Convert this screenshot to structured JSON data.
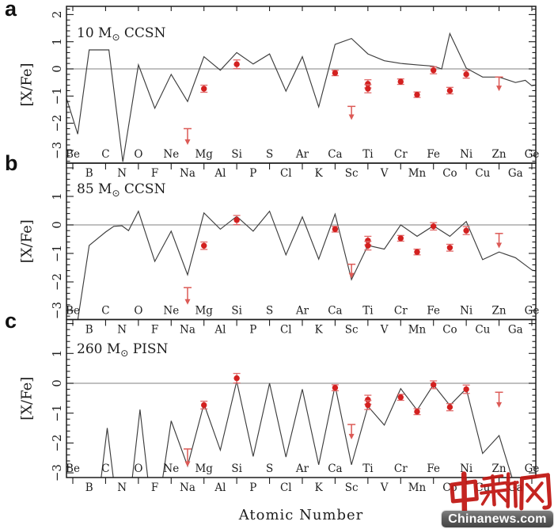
{
  "watermark": {
    "cjk_text": "中新网",
    "site_text": "Chinanews.com",
    "cjk_color": "#c01511",
    "banner_text_color": "#ffffff"
  },
  "chart_data": {
    "type": "line",
    "xlabel": "Atomic Number",
    "ylabel": "[X/Fe]",
    "x_range_atomic_number": [
      4,
      32
    ],
    "ylim": [
      -3,
      2
    ],
    "grid": false,
    "colors": {
      "model_line": "#3d3d3d",
      "zero_line": "#9b9b9b",
      "axis": "#1c1c1c",
      "data_red": "#d32120",
      "error_red": "#e06a6a",
      "arrow_red": "#dc5a56"
    },
    "element_labels_upper": [
      {
        "symbol": "Be",
        "z": 4
      },
      {
        "symbol": "C",
        "z": 6
      },
      {
        "symbol": "O",
        "z": 8
      },
      {
        "symbol": "Ne",
        "z": 10
      },
      {
        "symbol": "Mg",
        "z": 12
      },
      {
        "symbol": "Si",
        "z": 14
      },
      {
        "symbol": "S",
        "z": 16
      },
      {
        "symbol": "Ar",
        "z": 18
      },
      {
        "symbol": "Ca",
        "z": 20
      },
      {
        "symbol": "Ti",
        "z": 22
      },
      {
        "symbol": "Cr",
        "z": 24
      },
      {
        "symbol": "Fe",
        "z": 26
      },
      {
        "symbol": "Ni",
        "z": 28
      },
      {
        "symbol": "Zn",
        "z": 30
      },
      {
        "symbol": "Ge",
        "z": 32
      }
    ],
    "element_labels_lower": [
      {
        "symbol": "B",
        "z": 5
      },
      {
        "symbol": "N",
        "z": 7
      },
      {
        "symbol": "F",
        "z": 9
      },
      {
        "symbol": "Na",
        "z": 11
      },
      {
        "symbol": "Al",
        "z": 13
      },
      {
        "symbol": "P",
        "z": 15
      },
      {
        "symbol": "Cl",
        "z": 17
      },
      {
        "symbol": "K",
        "z": 19
      },
      {
        "symbol": "Sc",
        "z": 21
      },
      {
        "symbol": "V",
        "z": 23
      },
      {
        "symbol": "Mn",
        "z": 25
      },
      {
        "symbol": "Co",
        "z": 27
      },
      {
        "symbol": "Cu",
        "z": 29
      },
      {
        "symbol": "Ga",
        "z": 31
      }
    ],
    "panels": [
      {
        "id": "a",
        "label": "a",
        "title": "10 M⊙ CCSN",
        "yticks": [
          2,
          1,
          0,
          -1,
          -2,
          -3
        ],
        "model_line_segments": [
          [
            [
              3.6,
              -1.05
            ],
            [
              4.3,
              -2.4
            ],
            [
              5.0,
              0.7
            ],
            [
              6.2,
              0.7
            ],
            [
              7.05,
              -3.42
            ],
            [
              8,
              0.15
            ],
            [
              9,
              -1.45
            ],
            [
              10,
              -0.2
            ],
            [
              11,
              -1.2
            ],
            [
              12,
              0.45
            ],
            [
              13,
              -0.05
            ],
            [
              14,
              0.6
            ],
            [
              15,
              0.18
            ],
            [
              16,
              0.55
            ],
            [
              17,
              -0.82
            ],
            [
              18,
              0.45
            ],
            [
              19,
              -1.4
            ],
            [
              20,
              0.9
            ],
            [
              21,
              1.12
            ],
            [
              22,
              0.55
            ],
            [
              23,
              0.3
            ],
            [
              24,
              0.2
            ],
            [
              25,
              0.15
            ],
            [
              26,
              0.1
            ],
            [
              26.5,
              0.0
            ],
            [
              27,
              1.3
            ],
            [
              28,
              0.03
            ],
            [
              29,
              -0.3
            ],
            [
              30,
              -0.3
            ],
            [
              31,
              -0.5
            ],
            [
              31.6,
              -0.42
            ],
            [
              32,
              -0.62
            ],
            [
              32.3,
              -0.58
            ]
          ]
        ]
      },
      {
        "id": "b",
        "label": "b",
        "title": "85 M⊙ CCSN",
        "yticks": [
          1,
          0,
          -1,
          -2,
          -3
        ],
        "model_line_segments": [
          [
            [
              4.3,
              -3.35
            ],
            [
              5,
              -0.72
            ],
            [
              6,
              -0.25
            ],
            [
              6.5,
              -0.05
            ],
            [
              7,
              -0.03
            ],
            [
              7.4,
              -0.2
            ],
            [
              8,
              0.48
            ],
            [
              9,
              -1.28
            ],
            [
              10,
              -0.22
            ],
            [
              11,
              -1.75
            ],
            [
              12,
              0.42
            ],
            [
              13,
              -0.15
            ],
            [
              14,
              0.3
            ],
            [
              15,
              -0.22
            ],
            [
              16,
              0.48
            ],
            [
              17,
              -1.05
            ],
            [
              18,
              0.28
            ],
            [
              19,
              -1.2
            ],
            [
              20,
              0.38
            ],
            [
              21,
              -1.92
            ],
            [
              22,
              -0.72
            ],
            [
              23,
              -0.85
            ],
            [
              24,
              0.0
            ],
            [
              25,
              -0.4
            ],
            [
              26,
              -0.03
            ],
            [
              27,
              -0.4
            ],
            [
              28,
              0.12
            ],
            [
              29,
              -1.22
            ],
            [
              30,
              -0.95
            ],
            [
              31,
              -1.15
            ],
            [
              32,
              -1.58
            ],
            [
              32.3,
              -1.62
            ]
          ]
        ]
      },
      {
        "id": "c",
        "label": "c",
        "title": "260 M⊙ PISN",
        "yticks": [
          1,
          0,
          -1,
          -2,
          -3
        ],
        "model_line_segments": [
          [
            [
              5.7,
              -3.3
            ],
            [
              6.1,
              -1.5
            ],
            [
              6.5,
              -3.3
            ]
          ],
          [
            [
              7.6,
              -3.3
            ],
            [
              8.1,
              -0.88
            ],
            [
              8.6,
              -3.3
            ]
          ],
          [
            [
              9.45,
              -3.3
            ],
            [
              10,
              -1.26
            ],
            [
              11,
              -2.77
            ],
            [
              12,
              -0.69
            ],
            [
              13,
              -2.24
            ],
            [
              14,
              0.07
            ],
            [
              15,
              -2.45
            ],
            [
              16,
              0.0
            ],
            [
              17,
              -2.47
            ],
            [
              18,
              -0.2
            ],
            [
              19,
              -2.73
            ],
            [
              20,
              -0.08
            ],
            [
              21,
              -2.73
            ],
            [
              22,
              -0.77
            ],
            [
              23,
              -1.4
            ],
            [
              24,
              -0.18
            ],
            [
              25,
              -0.9
            ],
            [
              26,
              -0.05
            ],
            [
              27,
              -0.74
            ],
            [
              28,
              -0.18
            ],
            [
              29,
              -2.35
            ],
            [
              30,
              -1.75
            ],
            [
              30.9,
              -3.35
            ]
          ]
        ]
      }
    ],
    "observed_points": [
      {
        "el": "Na",
        "z": 11,
        "kind": "upper_limit",
        "cap": -2.2,
        "tip": -2.8
      },
      {
        "el": "Mg",
        "z": 12,
        "kind": "point",
        "v": -0.73,
        "err": 0.13
      },
      {
        "el": "Si",
        "z": 14,
        "kind": "point",
        "v": 0.17,
        "err": 0.16
      },
      {
        "el": "Ca",
        "z": 20,
        "kind": "point",
        "v": -0.15,
        "err": 0.1
      },
      {
        "el": "Sc",
        "z": 21,
        "kind": "upper_limit",
        "cap": -1.38,
        "tip": -1.88
      },
      {
        "el": "Ti",
        "z": 22,
        "kind": "point",
        "v": -0.55,
        "err": 0.15
      },
      {
        "el": "Ti",
        "z": 22,
        "kind": "point",
        "v": -0.73,
        "err": 0.15
      },
      {
        "el": "Cr",
        "z": 24,
        "kind": "point",
        "v": -0.47,
        "err": 0.1
      },
      {
        "el": "Mn",
        "z": 25,
        "kind": "point",
        "v": -0.95,
        "err": 0.1
      },
      {
        "el": "Fe",
        "z": 26,
        "kind": "point",
        "v": -0.05,
        "err": 0.13
      },
      {
        "el": "Co",
        "z": 27,
        "kind": "point",
        "v": -0.8,
        "err": 0.12
      },
      {
        "el": "Ni",
        "z": 28,
        "kind": "point",
        "v": -0.2,
        "err": 0.14
      },
      {
        "el": "Zn",
        "z": 30,
        "kind": "upper_limit",
        "cap": -0.3,
        "tip": -0.82
      }
    ]
  }
}
